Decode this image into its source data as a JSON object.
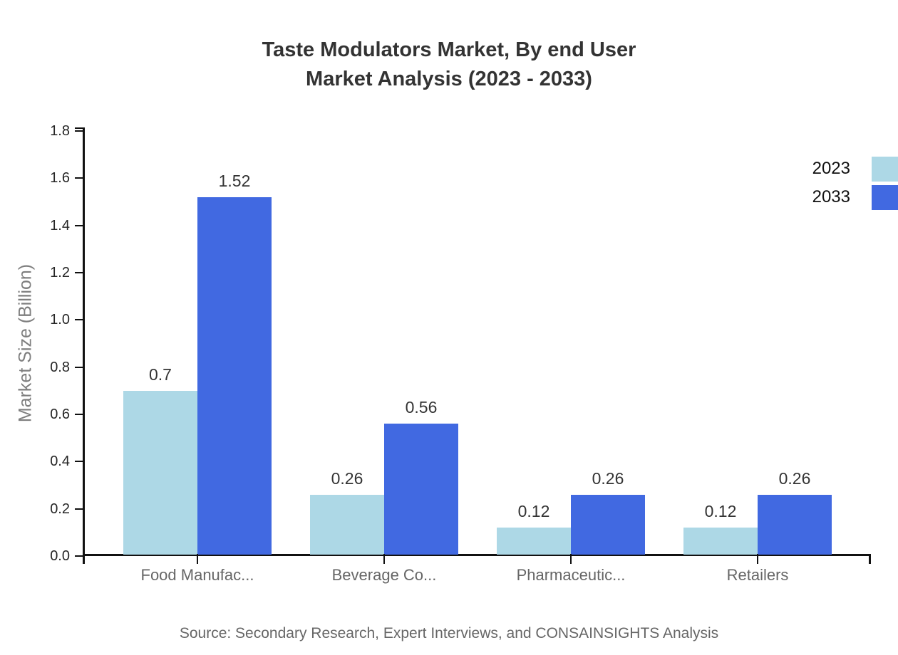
{
  "title": {
    "line1": "Taste Modulators Market, By end User",
    "line2": "Market Analysis (2023 - 2033)"
  },
  "footer": {
    "source": "Source: Secondary Research, Expert Interviews, and CONSAINSIGHTS Analysis"
  },
  "chart_data": {
    "type": "bar",
    "title": "Taste Modulators Market, By end User Market Analysis (2023 - 2033)",
    "xlabel": "",
    "ylabel": "Market Size (Billion)",
    "categories": [
      "Food Manufac...",
      "Beverage Co...",
      "Pharmaceutic...",
      "Retailers"
    ],
    "series": [
      {
        "name": "2023",
        "color": "#ADD8E6",
        "values": [
          0.7,
          0.26,
          0.12,
          0.12
        ]
      },
      {
        "name": "2033",
        "color": "#4169E1",
        "values": [
          1.52,
          0.56,
          0.26,
          0.26
        ]
      }
    ],
    "ytick_labels": [
      "0.0",
      "0.2",
      "0.4",
      "0.6",
      "0.8",
      "1.0",
      "1.2",
      "1.4",
      "1.6",
      "1.8"
    ],
    "ylim": [
      0,
      1.8
    ],
    "grid": false,
    "legend_position": "top-right",
    "colors": {
      "series_2023": "#ADD8E6",
      "series_2033": "#4169E1",
      "axis": "#111111",
      "title_text": "#333333",
      "value_label": "#333333",
      "tick_label": "#262626",
      "category_label": "#666666",
      "axis_title": "#7e7e7e",
      "source_text": "#666666"
    }
  }
}
